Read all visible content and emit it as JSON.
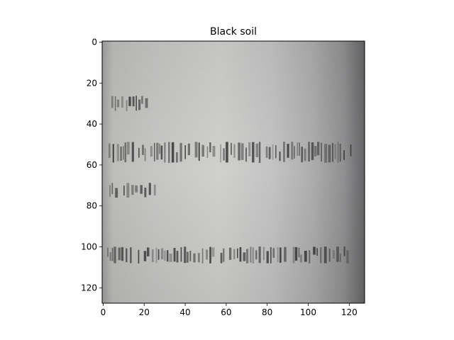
{
  "figure": {
    "title": "Black soil"
  },
  "image_axes": {
    "x_ticks": [
      0,
      20,
      40,
      60,
      80,
      100,
      120
    ],
    "y_ticks": [
      0,
      20,
      40,
      60,
      80,
      100,
      120
    ],
    "x_range": [
      -0.5,
      127.5
    ],
    "y_range": [
      -0.5,
      127.5
    ],
    "y_inverted": true
  },
  "colors": {
    "background": "#ffffff",
    "axis": "#000000",
    "image_light": "#cfcfcd",
    "image_dark": "#5d5d5f",
    "ink": "#2b2b2b"
  }
}
